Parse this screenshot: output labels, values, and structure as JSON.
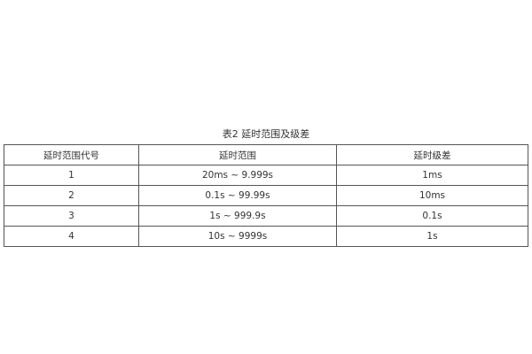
{
  "caption": "表2  延时范围及级差",
  "table": {
    "headers": [
      "延时范围代号",
      "延时范围",
      "延时级差"
    ],
    "rows": [
      [
        "1",
        "20ms ~ 9.999s",
        "1ms"
      ],
      [
        "2",
        "0.1s ~ 99.99s",
        "10ms"
      ],
      [
        "3",
        "1s ~ 999.9s",
        "0.1s"
      ],
      [
        "4",
        "10s ~ 9999s",
        "1s"
      ]
    ]
  }
}
